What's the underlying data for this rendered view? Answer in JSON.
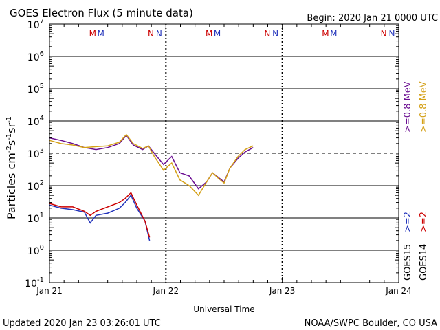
{
  "chart_data": {
    "type": "line",
    "title": "GOES Electron Flux (5 minute data)",
    "begin_label": "Begin: 2020 Jan 21 0000 UTC",
    "xlabel": "Universal Time",
    "ylabel": "Particles cm-2 s-1 sr-1",
    "ylabel_parts": {
      "base": "Particles cm",
      "exp1": "-2",
      "mid1": "s",
      "exp2": "-1",
      "mid2": "sr",
      "exp3": "-1"
    },
    "xlim_days": [
      0,
      3
    ],
    "ylim_log10": [
      -1,
      7
    ],
    "x_ticks": [
      {
        "day": 0,
        "label": "Jan 21"
      },
      {
        "day": 1,
        "label": "Jan 22"
      },
      {
        "day": 2,
        "label": "Jan 23"
      },
      {
        "day": 3,
        "label": "Jan 24"
      }
    ],
    "y_ticks": [
      {
        "exp": 7,
        "base": "10",
        "sup": "7"
      },
      {
        "exp": 6,
        "base": "10",
        "sup": "6"
      },
      {
        "exp": 5,
        "base": "10",
        "sup": "5"
      },
      {
        "exp": 4,
        "base": "10",
        "sup": "4"
      },
      {
        "exp": 3,
        "base": "10",
        "sup": "3"
      },
      {
        "exp": 2,
        "base": "10",
        "sup": "2"
      },
      {
        "exp": 1,
        "base": "10",
        "sup": "1"
      },
      {
        "exp": 0,
        "base": "10",
        "sup": "0"
      },
      {
        "exp": -1,
        "base": "10",
        "sup": "-1"
      }
    ],
    "threshold_line_exp": 3,
    "dotted_day_lines": [
      1,
      2
    ],
    "markers": [
      {
        "day": 0.43,
        "text": "M",
        "color": "#cc0000"
      },
      {
        "day": 0.5,
        "text": "M",
        "color": "#2233bb"
      },
      {
        "day": 0.93,
        "text": "N",
        "color": "#cc0000"
      },
      {
        "day": 1.0,
        "text": "N",
        "color": "#2233bb"
      },
      {
        "day": 1.43,
        "text": "M",
        "color": "#cc0000"
      },
      {
        "day": 1.5,
        "text": "M",
        "color": "#2233bb"
      },
      {
        "day": 1.93,
        "text": "N",
        "color": "#cc0000"
      },
      {
        "day": 2.0,
        "text": "N",
        "color": "#2233bb"
      },
      {
        "day": 2.43,
        "text": "M",
        "color": "#cc0000"
      },
      {
        "day": 2.5,
        "text": "M",
        "color": "#2233bb"
      },
      {
        "day": 2.93,
        "text": "N",
        "color": "#cc0000"
      },
      {
        "day": 3.0,
        "text": "N",
        "color": "#2233bb"
      }
    ],
    "legend": [
      {
        "text": ">=0.8 MeV",
        "color": "#6a0d91",
        "column": 0
      },
      {
        "text": ">=0.8 MeV",
        "color": "#d4a017",
        "column": 1
      },
      {
        "text": ">=2",
        "color": "#2233bb",
        "column": 0
      },
      {
        "text": ">=2",
        "color": "#cc0000",
        "column": 1
      },
      {
        "text": "GOES15",
        "color": "#000000",
        "column": 0
      },
      {
        "text": "GOES14",
        "color": "#000000",
        "column": 1
      }
    ],
    "series": [
      {
        "name": "GOES15 >=0.8 MeV",
        "color": "#6a0d91",
        "x": [
          0,
          0.1,
          0.2,
          0.3,
          0.4,
          0.5,
          0.6,
          0.66,
          0.72,
          0.8,
          0.85,
          0.9,
          0.98,
          1.05,
          1.12,
          1.2,
          1.28,
          1.35,
          1.4,
          1.45,
          1.5,
          1.55,
          1.62,
          1.68,
          1.75
        ],
        "y": [
          3000,
          2500,
          2000,
          1500,
          1300,
          1500,
          2000,
          3600,
          1800,
          1300,
          1700,
          1000,
          450,
          800,
          250,
          200,
          80,
          130,
          250,
          180,
          130,
          350,
          700,
          1100,
          1500
        ]
      },
      {
        "name": "GOES14 >=0.8 MeV",
        "color": "#d4a017",
        "x": [
          0,
          0.1,
          0.2,
          0.3,
          0.4,
          0.5,
          0.6,
          0.66,
          0.72,
          0.8,
          0.85,
          0.9,
          0.98,
          1.05,
          1.12,
          1.2,
          1.28,
          1.35,
          1.4,
          1.45,
          1.5,
          1.55,
          1.62,
          1.68,
          1.75
        ],
        "y": [
          2500,
          2000,
          1800,
          1500,
          1600,
          1700,
          2200,
          3800,
          2000,
          1400,
          1700,
          800,
          300,
          500,
          150,
          100,
          50,
          130,
          250,
          170,
          120,
          350,
          800,
          1300,
          1700
        ]
      },
      {
        "name": "GOES15 >=2",
        "color": "#2233bb",
        "x": [
          0,
          0.1,
          0.2,
          0.3,
          0.35,
          0.4,
          0.5,
          0.6,
          0.65,
          0.7,
          0.75,
          0.82,
          0.86
        ],
        "y": [
          25,
          20,
          18,
          15,
          7,
          12,
          14,
          20,
          30,
          50,
          20,
          8,
          2
        ]
      },
      {
        "name": "GOES14 >=2",
        "color": "#cc0000",
        "x": [
          0,
          0.1,
          0.2,
          0.3,
          0.35,
          0.4,
          0.5,
          0.6,
          0.65,
          0.7,
          0.75,
          0.82,
          0.86
        ],
        "y": [
          28,
          22,
          22,
          16,
          12,
          16,
          22,
          30,
          40,
          60,
          25,
          8,
          2.5
        ]
      }
    ]
  },
  "footer": {
    "updated": "Updated 2020 Jan 23 03:26:01 UTC",
    "credit": "NOAA/SWPC Boulder, CO USA"
  }
}
